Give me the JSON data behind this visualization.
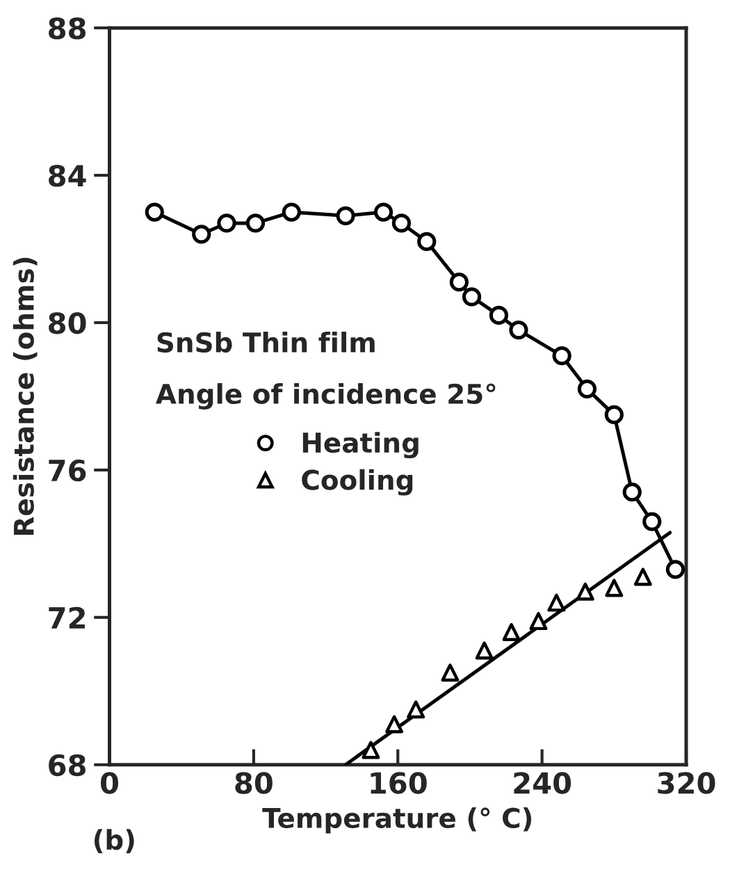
{
  "chart_data": {
    "type": "scatter",
    "xlabel": "Temperature (° C)",
    "ylabel": "Resistance (ohms)",
    "annotations": [
      "SnSb Thin film",
      "Angle of incidence 25°",
      "(b)"
    ],
    "xlim": [
      0,
      320
    ],
    "ylim": [
      68,
      88
    ],
    "xticks": [
      0,
      80,
      160,
      240,
      320
    ],
    "yticks": [
      68,
      72,
      76,
      80,
      84,
      88
    ],
    "grid": false,
    "legend": "left",
    "series": [
      {
        "name": "Heating",
        "type": "line",
        "marker": "circle",
        "color": "#000000",
        "x": [
          25,
          51,
          65,
          81,
          101,
          131,
          152,
          162,
          176,
          194,
          201,
          216,
          227,
          251,
          265,
          280,
          290,
          301,
          314
        ],
        "values": [
          83.0,
          82.4,
          82.7,
          82.7,
          83.0,
          82.9,
          83.0,
          82.7,
          82.2,
          81.1,
          80.7,
          80.2,
          79.8,
          79.1,
          78.2,
          77.5,
          75.4,
          74.6,
          73.3
        ]
      },
      {
        "name": "Cooling",
        "marker": "triangle",
        "color": "#000000",
        "x": [
          145,
          158,
          170,
          189,
          208,
          223,
          238,
          248,
          264,
          280,
          296
        ],
        "values": [
          68.4,
          69.1,
          69.5,
          70.5,
          71.1,
          71.6,
          71.9,
          72.4,
          72.7,
          72.8,
          73.1
        ]
      },
      {
        "type": "line",
        "marker": "none",
        "color": "#000000",
        "x": [
          131,
          311
        ],
        "values": [
          68.0,
          74.3
        ]
      }
    ]
  }
}
